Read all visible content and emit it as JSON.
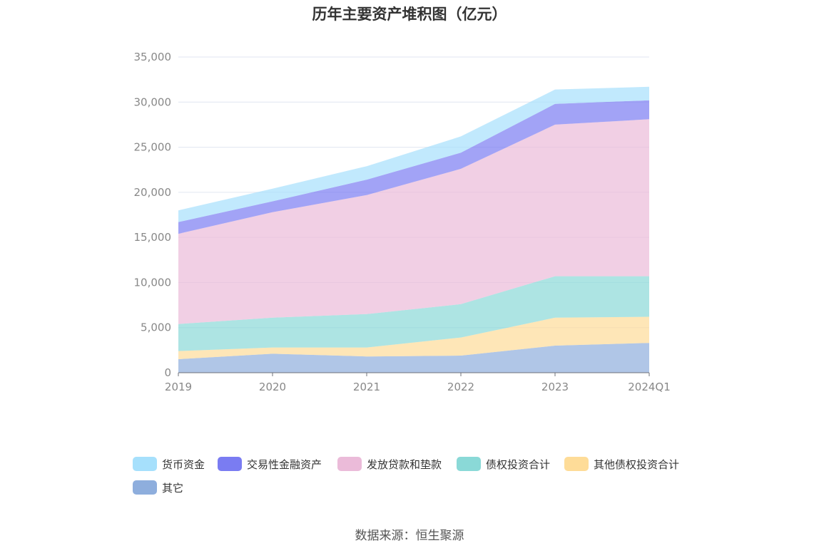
{
  "chart_data": {
    "type": "area",
    "stacked": true,
    "title": "历年主要资产堆积图（亿元）",
    "categories": [
      "2019",
      "2020",
      "2021",
      "2022",
      "2023",
      "2024Q1"
    ],
    "ylim": [
      0,
      35000
    ],
    "yticks": [
      0,
      5000,
      10000,
      15000,
      20000,
      25000,
      30000,
      35000
    ],
    "ytick_labels": [
      "0",
      "5,000",
      "10,000",
      "15,000",
      "20,000",
      "25,000",
      "30,000",
      "35,000"
    ],
    "grid": true,
    "legend_position": "bottom",
    "series": [
      {
        "name": "其它",
        "color": "#8eaedd",
        "values": [
          1500,
          2100,
          1800,
          1900,
          3000,
          3300
        ]
      },
      {
        "name": "其他债权投资合计",
        "color": "#fedc98",
        "values": [
          900,
          700,
          1000,
          2000,
          3100,
          2900
        ]
      },
      {
        "name": "债权投资合计",
        "color": "#8ad9d7",
        "values": [
          3000,
          3300,
          3700,
          3700,
          4600,
          4500
        ]
      },
      {
        "name": "发放贷款和垫款",
        "color": "#ebbbd9",
        "values": [
          10000,
          11700,
          13200,
          15000,
          16800,
          17400
        ]
      },
      {
        "name": "交易性金融资产",
        "color": "#7a7cf2",
        "values": [
          1300,
          1200,
          1700,
          1800,
          2300,
          2100
        ]
      },
      {
        "name": "货币资金",
        "color": "#a6e0fc",
        "values": [
          1300,
          1400,
          1500,
          1800,
          1600,
          1500
        ]
      }
    ],
    "legend_order": [
      "货币资金",
      "交易性金融资产",
      "发放贷款和垫款",
      "债权投资合计",
      "其他债权投资合计",
      "其它"
    ]
  },
  "source": "数据来源：恒生聚源"
}
